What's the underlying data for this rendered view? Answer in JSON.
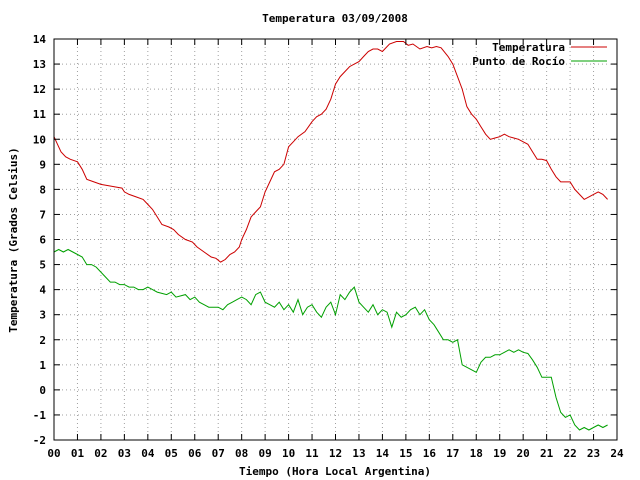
{
  "chart_data": {
    "type": "line",
    "title": "Temperatura 03/09/2008",
    "xlabel": "Tiempo (Hora Local Argentina)",
    "ylabel": "Temperatura (Grados Celsius)",
    "xlim": [
      0,
      24
    ],
    "ylim": [
      -2,
      14
    ],
    "xticks": [
      "00",
      "01",
      "02",
      "03",
      "04",
      "05",
      "06",
      "07",
      "08",
      "09",
      "10",
      "11",
      "12",
      "13",
      "14",
      "15",
      "16",
      "17",
      "18",
      "19",
      "20",
      "21",
      "22",
      "23",
      "24"
    ],
    "yticks": [
      "-2",
      "-1",
      "0",
      "1",
      "2",
      "3",
      "4",
      "5",
      "6",
      "7",
      "8",
      "9",
      "10",
      "11",
      "12",
      "13",
      "14"
    ],
    "grid": true,
    "legend_position": "top-right",
    "series": [
      {
        "name": "Temperatura",
        "color": "#cc0000",
        "x": [
          0,
          0.15,
          0.3,
          0.5,
          0.7,
          1.0,
          1.2,
          1.4,
          1.7,
          2.0,
          2.3,
          2.6,
          2.9,
          3.0,
          3.2,
          3.5,
          3.8,
          4.0,
          4.2,
          4.4,
          4.6,
          4.9,
          5.1,
          5.3,
          5.6,
          5.9,
          6.1,
          6.4,
          6.7,
          6.9,
          7.1,
          7.3,
          7.5,
          7.7,
          7.9,
          8.0,
          8.2,
          8.4,
          8.6,
          8.8,
          9.0,
          9.2,
          9.4,
          9.6,
          9.8,
          10.0,
          10.2,
          10.4,
          10.7,
          11.0,
          11.2,
          11.4,
          11.6,
          11.8,
          12.0,
          12.2,
          12.4,
          12.6,
          12.8,
          13.0,
          13.2,
          13.4,
          13.6,
          13.8,
          14.0,
          14.3,
          14.6,
          14.9,
          15.1,
          15.3,
          15.6,
          15.9,
          16.1,
          16.3,
          16.5,
          16.8,
          17.0,
          17.2,
          17.4,
          17.6,
          17.8,
          18.0,
          18.2,
          18.4,
          18.6,
          18.8,
          19.0,
          19.2,
          19.4,
          19.6,
          19.8,
          20.0,
          20.2,
          20.4,
          20.6,
          20.8,
          21.0,
          21.2,
          21.4,
          21.6,
          21.8,
          22.0,
          22.2,
          22.4,
          22.6,
          22.8,
          23.0,
          23.2,
          23.4,
          23.6
        ],
        "y": [
          10.1,
          9.8,
          9.5,
          9.3,
          9.2,
          9.1,
          8.8,
          8.4,
          8.3,
          8.2,
          8.15,
          8.1,
          8.05,
          7.9,
          7.8,
          7.7,
          7.6,
          7.4,
          7.2,
          6.9,
          6.6,
          6.5,
          6.4,
          6.2,
          6.0,
          5.9,
          5.7,
          5.5,
          5.3,
          5.25,
          5.1,
          5.2,
          5.4,
          5.5,
          5.7,
          6.0,
          6.4,
          6.9,
          7.1,
          7.3,
          7.9,
          8.3,
          8.7,
          8.8,
          9.0,
          9.7,
          9.9,
          10.1,
          10.3,
          10.7,
          10.9,
          11.0,
          11.2,
          11.6,
          12.2,
          12.5,
          12.7,
          12.9,
          13.0,
          13.1,
          13.3,
          13.5,
          13.6,
          13.6,
          13.5,
          13.8,
          13.9,
          13.9,
          13.75,
          13.8,
          13.6,
          13.7,
          13.65,
          13.7,
          13.65,
          13.3,
          13.0,
          12.5,
          12.0,
          11.3,
          11.0,
          10.8,
          10.5,
          10.2,
          10.0,
          10.05,
          10.1,
          10.2,
          10.1,
          10.05,
          10.0,
          9.9,
          9.8,
          9.5,
          9.2,
          9.2,
          9.15,
          8.8,
          8.5,
          8.3,
          8.3,
          8.3,
          8.0,
          7.8,
          7.6,
          7.7,
          7.8,
          7.9,
          7.8,
          7.6
        ]
      },
      {
        "name": "Punto de Rocío",
        "color": "#00a000",
        "x": [
          0,
          0.2,
          0.4,
          0.6,
          0.8,
          1.0,
          1.2,
          1.4,
          1.6,
          1.8,
          2.0,
          2.2,
          2.4,
          2.6,
          2.8,
          3.0,
          3.2,
          3.4,
          3.6,
          3.8,
          4.0,
          4.2,
          4.4,
          4.6,
          4.8,
          5.0,
          5.2,
          5.4,
          5.6,
          5.8,
          6.0,
          6.2,
          6.4,
          6.6,
          6.8,
          7.0,
          7.2,
          7.4,
          7.6,
          7.8,
          8.0,
          8.2,
          8.4,
          8.6,
          8.8,
          9.0,
          9.2,
          9.4,
          9.6,
          9.8,
          10.0,
          10.2,
          10.4,
          10.6,
          10.8,
          11.0,
          11.2,
          11.4,
          11.6,
          11.8,
          12.0,
          12.2,
          12.4,
          12.6,
          12.8,
          13.0,
          13.2,
          13.4,
          13.6,
          13.8,
          14.0,
          14.2,
          14.4,
          14.6,
          14.8,
          15.0,
          15.2,
          15.4,
          15.6,
          15.8,
          16.0,
          16.2,
          16.4,
          16.6,
          16.8,
          17.0,
          17.2,
          17.4,
          17.6,
          17.8,
          18.0,
          18.2,
          18.4,
          18.6,
          18.8,
          19.0,
          19.2,
          19.4,
          19.6,
          19.8,
          20.0,
          20.2,
          20.4,
          20.6,
          20.8,
          21.0,
          21.2,
          21.4,
          21.6,
          21.8,
          22.0,
          22.2,
          22.4,
          22.6,
          22.8,
          23.0,
          23.2,
          23.4,
          23.6
        ],
        "y": [
          5.5,
          5.6,
          5.5,
          5.6,
          5.5,
          5.4,
          5.3,
          5.0,
          5.0,
          4.9,
          4.7,
          4.5,
          4.3,
          4.3,
          4.2,
          4.2,
          4.1,
          4.1,
          4.0,
          4.0,
          4.1,
          4.0,
          3.9,
          3.85,
          3.8,
          3.9,
          3.7,
          3.75,
          3.8,
          3.6,
          3.7,
          3.5,
          3.4,
          3.3,
          3.3,
          3.3,
          3.2,
          3.4,
          3.5,
          3.6,
          3.7,
          3.6,
          3.4,
          3.8,
          3.9,
          3.5,
          3.4,
          3.3,
          3.5,
          3.2,
          3.4,
          3.1,
          3.6,
          3.0,
          3.3,
          3.4,
          3.1,
          2.9,
          3.3,
          3.5,
          3.0,
          3.8,
          3.6,
          3.9,
          4.1,
          3.5,
          3.3,
          3.1,
          3.4,
          3.0,
          3.2,
          3.1,
          2.5,
          3.1,
          2.9,
          3.0,
          3.2,
          3.3,
          3.0,
          3.2,
          2.8,
          2.6,
          2.3,
          2.0,
          2.0,
          1.9,
          2.0,
          1.0,
          0.9,
          0.8,
          0.7,
          1.1,
          1.3,
          1.3,
          1.4,
          1.4,
          1.5,
          1.6,
          1.5,
          1.6,
          1.5,
          1.45,
          1.2,
          0.9,
          0.5,
          0.5,
          0.5,
          -0.3,
          -0.9,
          -1.1,
          -1.0,
          -1.4,
          -1.6,
          -1.5,
          -1.6,
          -1.5,
          -1.4,
          -1.5,
          -1.4
        ]
      }
    ]
  }
}
